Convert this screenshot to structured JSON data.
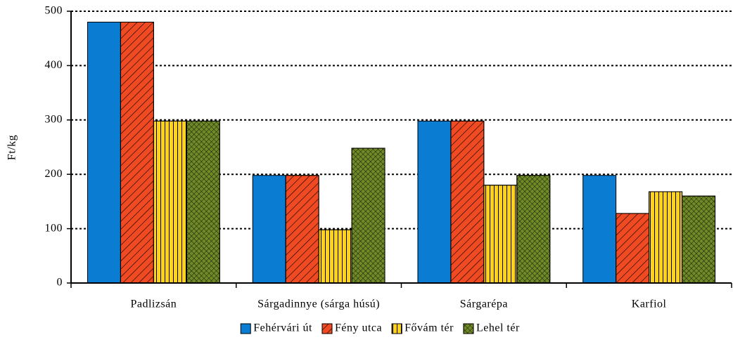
{
  "chart_data": {
    "type": "bar",
    "ylabel": "Ft/kg",
    "categories": [
      "Padlizsán",
      "Sárgadinnye (sárga húsú)",
      "Sárgarépa",
      "Karfiol"
    ],
    "series": [
      {
        "name": "Fehérvári út",
        "color": "#0a7cd2",
        "hatch": "none",
        "values": [
          480,
          198,
          298,
          198
        ]
      },
      {
        "name": "Fény utca",
        "color": "#f04a22",
        "hatch": "diagonal",
        "values": [
          480,
          198,
          298,
          128
        ]
      },
      {
        "name": "Fővám tér",
        "color": "#ffd21f",
        "hatch": "vertical",
        "values": [
          298,
          98,
          180,
          168
        ]
      },
      {
        "name": "Lehel tér",
        "color": "#6f8a26",
        "hatch": "cross",
        "values": [
          298,
          248,
          198,
          160
        ]
      }
    ],
    "ylim": [
      0,
      500
    ],
    "yticks": [
      0,
      100,
      200,
      300,
      400,
      500
    ],
    "grid": true,
    "legend": "bottom"
  }
}
